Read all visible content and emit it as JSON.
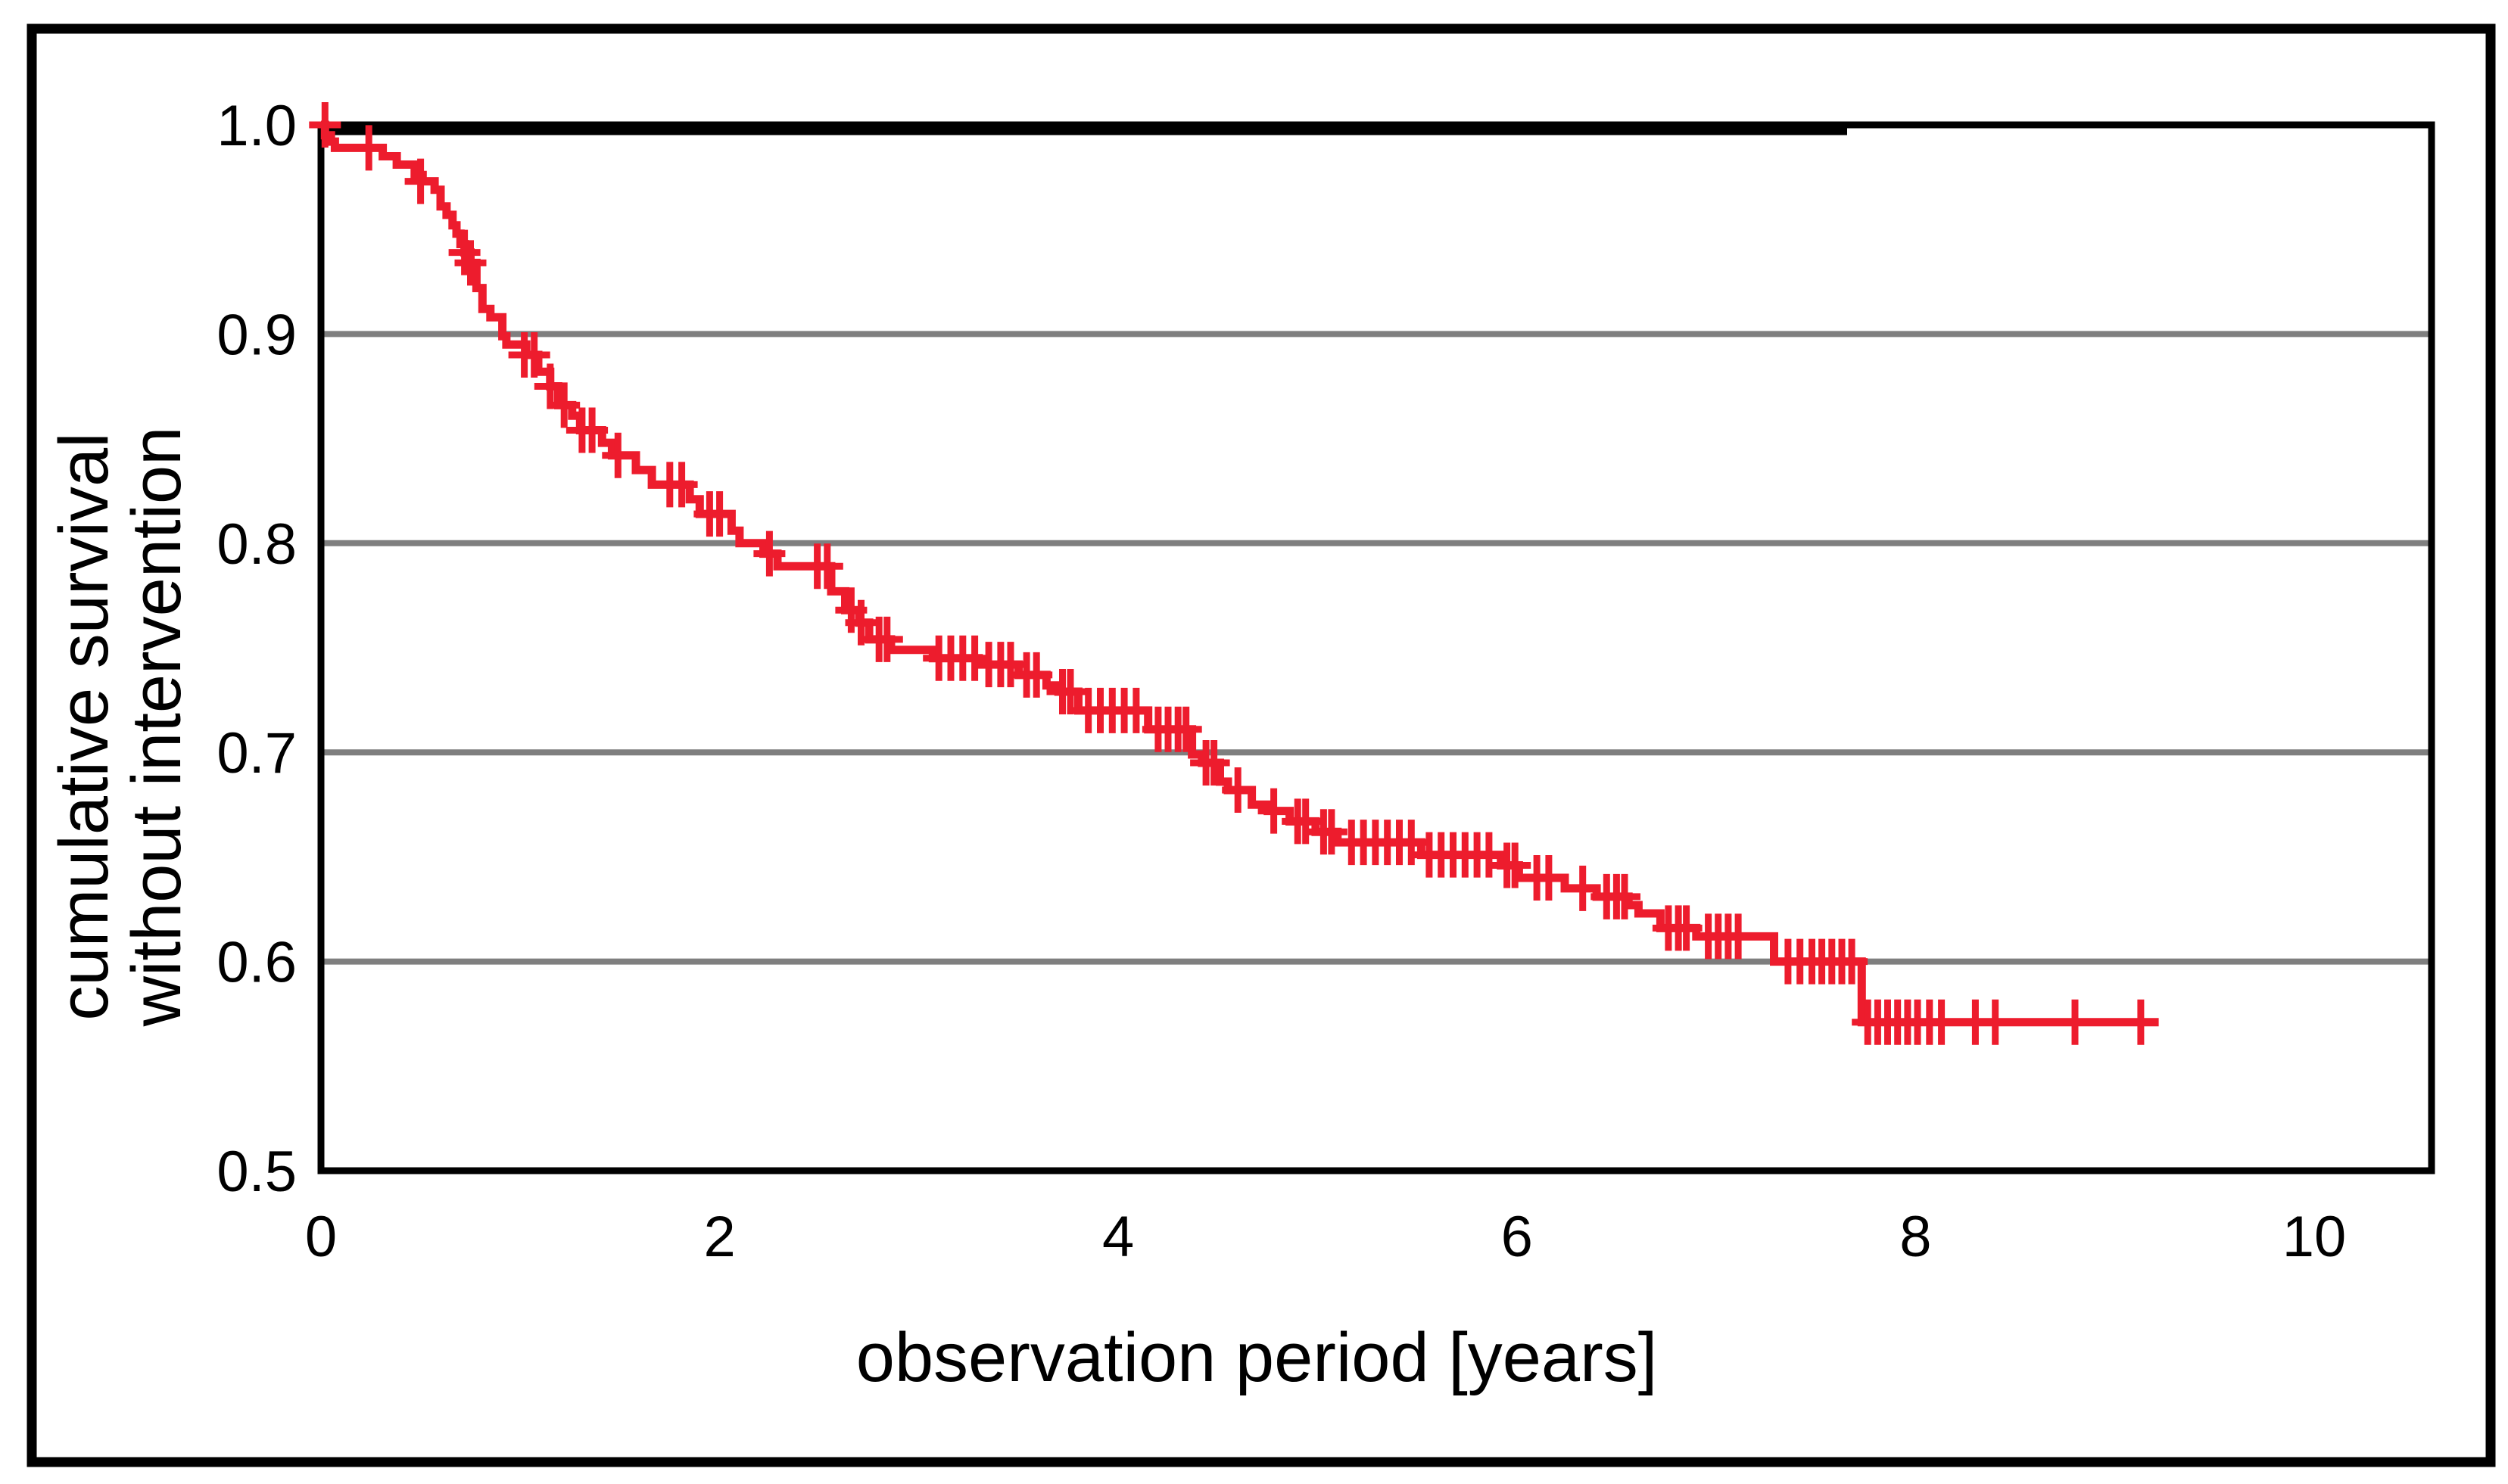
{
  "figure": {
    "background": "#ffffff",
    "border_color": "#000000"
  },
  "chart_data": {
    "type": "line",
    "subtype": "kaplan-meier-step-curve",
    "title": "",
    "xlabel": "observation period [years]",
    "ylabel_line1": "cumulative survival",
    "ylabel_line2": "without intervention",
    "xlim": [
      0,
      10.6
    ],
    "ylim": [
      0.5,
      1.0
    ],
    "grid_on": true,
    "legend": "none",
    "x_ticks": [
      {
        "value": 0,
        "label": "0"
      },
      {
        "value": 2,
        "label": "2"
      },
      {
        "value": 4,
        "label": "4"
      },
      {
        "value": 6,
        "label": "6"
      },
      {
        "value": 8,
        "label": "8"
      },
      {
        "value": 10,
        "label": "10"
      }
    ],
    "y_ticks": [
      {
        "value": 1.0,
        "label": "1.0"
      },
      {
        "value": 0.9,
        "label": "0.9"
      },
      {
        "value": 0.8,
        "label": "0.8"
      },
      {
        "value": 0.7,
        "label": "0.7"
      },
      {
        "value": 0.6,
        "label": "0.6"
      },
      {
        "value": 0.5,
        "label": "0.5"
      }
    ],
    "gridlines_y": [
      0.9,
      0.8,
      0.7,
      0.6
    ],
    "colors": {
      "curve": "#ed1c2d",
      "grid": "#7f7f7f",
      "axis": "#000000",
      "background": "#ffffff"
    },
    "curve_start": {
      "t": 0,
      "s": 1.0
    },
    "curve_end_t": 9.22,
    "km_steps": [
      [
        0.02,
        0.995
      ],
      [
        0.05,
        0.992
      ],
      [
        0.07,
        0.989
      ],
      [
        0.31,
        0.985
      ],
      [
        0.38,
        0.981
      ],
      [
        0.47,
        0.976
      ],
      [
        0.51,
        0.973
      ],
      [
        0.57,
        0.969
      ],
      [
        0.6,
        0.961
      ],
      [
        0.63,
        0.957
      ],
      [
        0.66,
        0.952
      ],
      [
        0.68,
        0.948
      ],
      [
        0.7,
        0.943
      ],
      [
        0.72,
        0.939
      ],
      [
        0.75,
        0.934
      ],
      [
        0.78,
        0.922
      ],
      [
        0.81,
        0.912
      ],
      [
        0.85,
        0.908
      ],
      [
        0.91,
        0.899
      ],
      [
        0.93,
        0.895
      ],
      [
        1.03,
        0.89
      ],
      [
        1.09,
        0.882
      ],
      [
        1.15,
        0.875
      ],
      [
        1.19,
        0.866
      ],
      [
        1.26,
        0.861
      ],
      [
        1.3,
        0.854
      ],
      [
        1.41,
        0.848
      ],
      [
        1.46,
        0.842
      ],
      [
        1.58,
        0.835
      ],
      [
        1.66,
        0.828
      ],
      [
        1.85,
        0.821
      ],
      [
        1.9,
        0.814
      ],
      [
        2.06,
        0.806
      ],
      [
        2.1,
        0.8
      ],
      [
        2.22,
        0.795
      ],
      [
        2.29,
        0.789
      ],
      [
        2.56,
        0.777
      ],
      [
        2.63,
        0.768
      ],
      [
        2.7,
        0.762
      ],
      [
        2.75,
        0.754
      ],
      [
        2.86,
        0.749
      ],
      [
        3.07,
        0.745
      ],
      [
        3.3,
        0.742
      ],
      [
        3.5,
        0.737
      ],
      [
        3.64,
        0.732
      ],
      [
        3.7,
        0.729
      ],
      [
        3.8,
        0.72
      ],
      [
        4.15,
        0.711
      ],
      [
        4.37,
        0.699
      ],
      [
        4.42,
        0.695
      ],
      [
        4.51,
        0.686
      ],
      [
        4.55,
        0.682
      ],
      [
        4.67,
        0.675
      ],
      [
        4.75,
        0.672
      ],
      [
        4.86,
        0.667
      ],
      [
        4.99,
        0.662
      ],
      [
        5.1,
        0.657
      ],
      [
        5.52,
        0.651
      ],
      [
        5.92,
        0.646
      ],
      [
        6.01,
        0.64
      ],
      [
        6.24,
        0.635
      ],
      [
        6.4,
        0.631
      ],
      [
        6.56,
        0.627
      ],
      [
        6.61,
        0.623
      ],
      [
        6.72,
        0.616
      ],
      [
        6.9,
        0.612
      ],
      [
        7.29,
        0.6
      ],
      [
        7.73,
        0.571
      ]
    ],
    "censor_marks": [
      [
        0.02,
        1.0
      ],
      [
        0.24,
        0.989
      ],
      [
        0.5,
        0.973
      ],
      [
        0.72,
        0.939
      ],
      [
        0.75,
        0.934
      ],
      [
        1.02,
        0.89
      ],
      [
        1.07,
        0.89
      ],
      [
        1.15,
        0.875
      ],
      [
        1.22,
        0.866
      ],
      [
        1.31,
        0.854
      ],
      [
        1.36,
        0.854
      ],
      [
        1.49,
        0.842
      ],
      [
        1.75,
        0.828
      ],
      [
        1.81,
        0.828
      ],
      [
        1.95,
        0.814
      ],
      [
        2.0,
        0.814
      ],
      [
        2.25,
        0.795
      ],
      [
        2.49,
        0.789
      ],
      [
        2.54,
        0.789
      ],
      [
        2.66,
        0.768
      ],
      [
        2.71,
        0.762
      ],
      [
        2.8,
        0.754
      ],
      [
        2.84,
        0.754
      ],
      [
        3.1,
        0.745
      ],
      [
        3.16,
        0.745
      ],
      [
        3.22,
        0.745
      ],
      [
        3.28,
        0.745
      ],
      [
        3.35,
        0.742
      ],
      [
        3.41,
        0.742
      ],
      [
        3.46,
        0.742
      ],
      [
        3.54,
        0.737
      ],
      [
        3.59,
        0.737
      ],
      [
        3.72,
        0.729
      ],
      [
        3.76,
        0.729
      ],
      [
        3.85,
        0.72
      ],
      [
        3.91,
        0.72
      ],
      [
        3.97,
        0.72
      ],
      [
        4.03,
        0.72
      ],
      [
        4.09,
        0.72
      ],
      [
        4.2,
        0.711
      ],
      [
        4.25,
        0.711
      ],
      [
        4.3,
        0.711
      ],
      [
        4.34,
        0.711
      ],
      [
        4.44,
        0.695
      ],
      [
        4.48,
        0.695
      ],
      [
        4.6,
        0.682
      ],
      [
        4.78,
        0.672
      ],
      [
        4.9,
        0.667
      ],
      [
        4.94,
        0.667
      ],
      [
        5.03,
        0.662
      ],
      [
        5.07,
        0.662
      ],
      [
        5.17,
        0.657
      ],
      [
        5.23,
        0.657
      ],
      [
        5.29,
        0.657
      ],
      [
        5.35,
        0.657
      ],
      [
        5.41,
        0.657
      ],
      [
        5.47,
        0.657
      ],
      [
        5.56,
        0.651
      ],
      [
        5.62,
        0.651
      ],
      [
        5.68,
        0.651
      ],
      [
        5.74,
        0.651
      ],
      [
        5.8,
        0.651
      ],
      [
        5.86,
        0.651
      ],
      [
        5.95,
        0.646
      ],
      [
        5.99,
        0.646
      ],
      [
        6.1,
        0.64
      ],
      [
        6.16,
        0.64
      ],
      [
        6.33,
        0.635
      ],
      [
        6.45,
        0.631
      ],
      [
        6.5,
        0.631
      ],
      [
        6.54,
        0.631
      ],
      [
        6.76,
        0.616
      ],
      [
        6.81,
        0.616
      ],
      [
        6.85,
        0.616
      ],
      [
        6.96,
        0.612
      ],
      [
        7.01,
        0.612
      ],
      [
        7.06,
        0.612
      ],
      [
        7.11,
        0.612
      ],
      [
        7.36,
        0.6
      ],
      [
        7.42,
        0.6
      ],
      [
        7.48,
        0.6
      ],
      [
        7.53,
        0.6
      ],
      [
        7.58,
        0.6
      ],
      [
        7.63,
        0.6
      ],
      [
        7.68,
        0.6
      ],
      [
        7.76,
        0.571
      ],
      [
        7.81,
        0.571
      ],
      [
        7.86,
        0.571
      ],
      [
        7.91,
        0.571
      ],
      [
        7.96,
        0.571
      ],
      [
        8.01,
        0.571
      ],
      [
        8.07,
        0.571
      ],
      [
        8.13,
        0.571
      ],
      [
        8.3,
        0.571
      ],
      [
        8.4,
        0.571
      ],
      [
        8.8,
        0.571
      ],
      [
        9.13,
        0.571
      ]
    ]
  }
}
